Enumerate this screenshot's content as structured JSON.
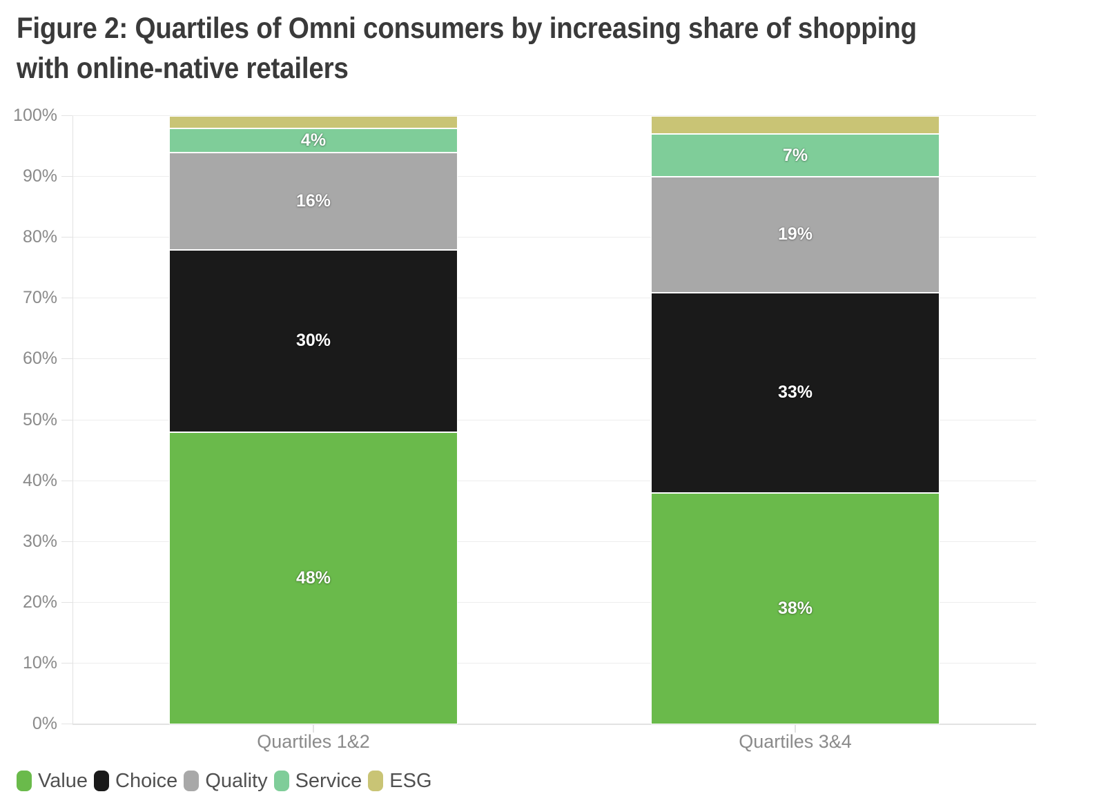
{
  "title_lines": [
    "Figure 2: Quartiles of Omni consumers by increasing share of shopping",
    "with online-native retailers"
  ],
  "chart_data": {
    "type": "bar",
    "stacked": true,
    "orientation": "vertical",
    "title": "Figure 2: Quartiles of Omni consumers by increasing share of shopping with online-native retailers",
    "categories": [
      "Quartiles 1&2",
      "Quartiles 3&4"
    ],
    "series": [
      {
        "name": "Value",
        "color": "#6ABA4B",
        "values": [
          48,
          38
        ]
      },
      {
        "name": "Choice",
        "color": "#1A1A1A",
        "values": [
          30,
          33
        ]
      },
      {
        "name": "Quality",
        "color": "#A8A8A8",
        "values": [
          16,
          19
        ]
      },
      {
        "name": "Service",
        "color": "#7FCD99",
        "values": [
          4,
          7
        ]
      },
      {
        "name": "ESG",
        "color": "#C9C475",
        "values": [
          2,
          3
        ]
      }
    ],
    "value_suffix": "%",
    "xlabel": "",
    "ylabel": "",
    "ylim": [
      0,
      100
    ],
    "y_tick_step": 10,
    "y_tick_labels": [
      "0%",
      "10%",
      "20%",
      "30%",
      "40%",
      "50%",
      "60%",
      "70%",
      "80%",
      "90%",
      "100%"
    ],
    "grid": true,
    "legend_position": "bottom-left",
    "data_labels": {
      "Quartiles 1&2": {
        "Value": "48%",
        "Choice": "30%",
        "Quality": "16%",
        "Service": "4%"
      },
      "Quartiles 3&4": {
        "Value": "38%",
        "Choice": "33%",
        "Quality": "19%",
        "Service": "7%"
      }
    }
  },
  "colors": {
    "title": "#3A3A3A",
    "axis_label": "#8A8A8A",
    "grid_line": "#EDEDED",
    "axis_line": "#E2E2E2",
    "legend_text": "#505050",
    "data_label": "#FFFFFF",
    "background": "#FFFFFF"
  }
}
